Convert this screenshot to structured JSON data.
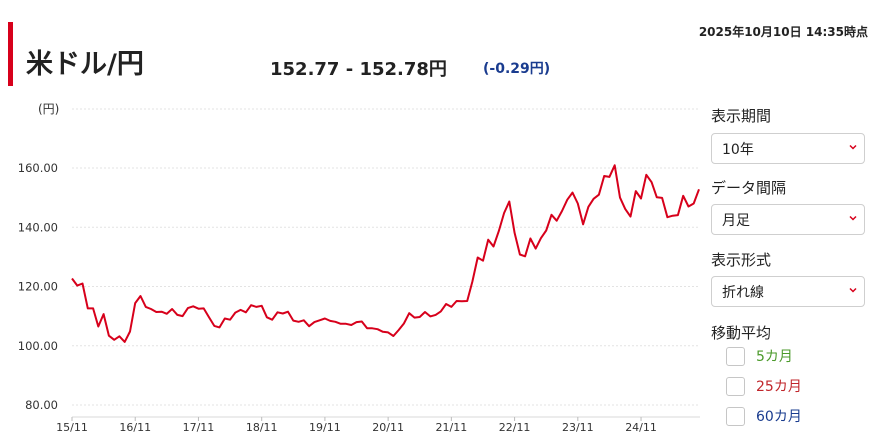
{
  "header": {
    "timestamp": "2025年10月10日 14:35時点",
    "title": "米ドル/円",
    "quote": "152.77 - 152.78円",
    "change": "(-0.29円)",
    "change_color": "#1a3c8f",
    "accent_color": "#d7001b"
  },
  "controls": {
    "period": {
      "label": "表示期間",
      "value": "10年"
    },
    "interval": {
      "label": "データ間隔",
      "value": "月足"
    },
    "style": {
      "label": "表示形式",
      "value": "折れ線"
    },
    "moving_average": {
      "label": "移動平均",
      "items": [
        {
          "label": "5カ月",
          "color": "#4b9a2b",
          "checked": false
        },
        {
          "label": "25カ月",
          "color": "#c0262b",
          "checked": false
        },
        {
          "label": "60カ月",
          "color": "#1a3c8f",
          "checked": false
        }
      ]
    }
  },
  "chart_data": {
    "type": "line",
    "ylabel": "(円)",
    "ylim": [
      80,
      160
    ],
    "yticks": [
      80,
      100,
      120,
      140,
      160
    ],
    "ytick_labels": [
      "80.00",
      "100.00",
      "120.00",
      "140.00",
      "160.00"
    ],
    "xtick_labels": [
      "15/11",
      "16/11",
      "17/11",
      "18/11",
      "19/11",
      "20/11",
      "21/11",
      "22/11",
      "23/11",
      "24/11"
    ],
    "grid": true,
    "series": [
      {
        "color": "#d7001b",
        "values": [
          122.7,
          120.3,
          121.0,
          112.6,
          112.6,
          106.5,
          110.7,
          103.4,
          102.0,
          103.2,
          101.3,
          104.8,
          114.4,
          116.8,
          113.1,
          112.4,
          111.4,
          111.5,
          110.8,
          112.4,
          110.4,
          110.0,
          112.7,
          113.3,
          112.5,
          112.6,
          109.6,
          106.7,
          106.2,
          109.2,
          108.8,
          111.2,
          112.1,
          111.3,
          113.7,
          113.1,
          113.5,
          109.6,
          108.8,
          111.3,
          110.9,
          111.5,
          108.5,
          108.1,
          108.6,
          106.6,
          108.0,
          108.6,
          109.2,
          108.4,
          108.1,
          107.4,
          107.4,
          107.0,
          108.0,
          108.2,
          105.9,
          105.9,
          105.6,
          104.7,
          104.5,
          103.3,
          105.3,
          107.5,
          111.0,
          109.5,
          109.7,
          111.4,
          109.9,
          110.4,
          111.6,
          114.1,
          113.1,
          115.1,
          115.0,
          115.1,
          121.7,
          129.8,
          128.7,
          135.8,
          133.5,
          138.7,
          144.8,
          148.7,
          138.1,
          130.8,
          130.2,
          136.2,
          132.8,
          136.3,
          138.9,
          144.2,
          142.2,
          145.5,
          149.3,
          151.7,
          148.0,
          141.0,
          146.9,
          149.6,
          151.0,
          157.3,
          157.0,
          160.9,
          150.0,
          146.2,
          143.6,
          152.2,
          149.7,
          157.7,
          155.2,
          150.1,
          149.9,
          143.4,
          143.9,
          144.1,
          150.6,
          147.0,
          148.0,
          152.8
        ]
      }
    ]
  }
}
